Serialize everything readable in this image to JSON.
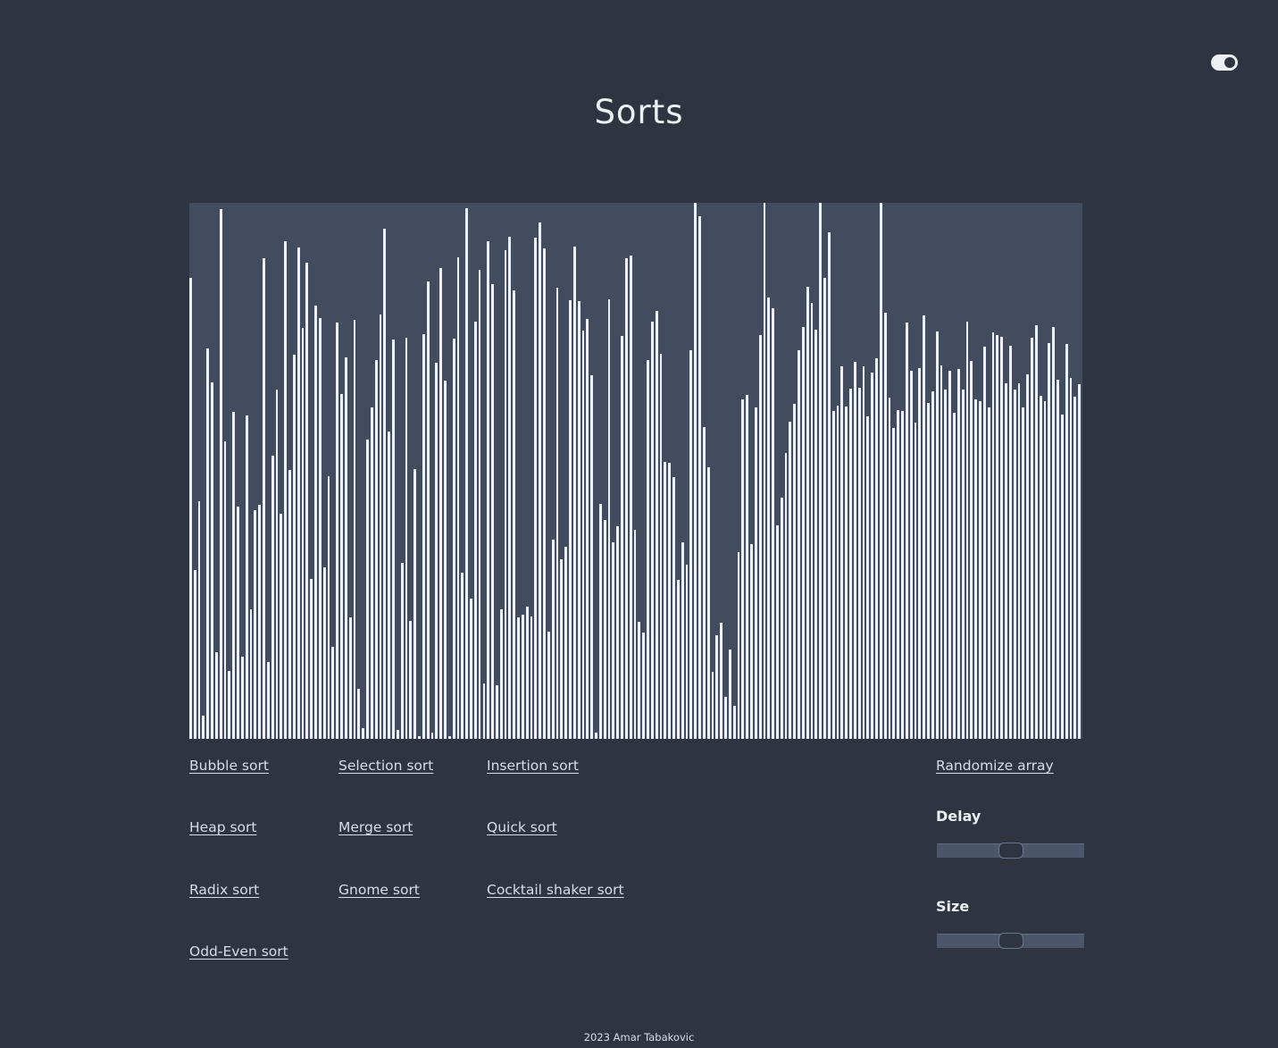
{
  "header": {
    "title": "Sorts",
    "theme_toggle_icon": "toggle-switch-icon"
  },
  "colors": {
    "background": "#2e3440",
    "panel": "#434c5e",
    "bar": "#eceff4",
    "slider_track": "#4c566a"
  },
  "array": {
    "max_value": 1000,
    "values": [
      860,
      315,
      443,
      43,
      728,
      665,
      162,
      988,
      555,
      126,
      610,
      433,
      154,
      604,
      241,
      427,
      437,
      897,
      143,
      528,
      651,
      420,
      929,
      502,
      716,
      917,
      767,
      888,
      298,
      808,
      785,
      320,
      490,
      171,
      776,
      643,
      711,
      227,
      781,
      93,
      20,
      559,
      618,
      706,
      791,
      951,
      574,
      745,
      17,
      329,
      749,
      220,
      504,
      0,
      755,
      854,
      11,
      702,
      879,
      669,
      1,
      747,
      898,
      310,
      990,
      262,
      779,
      875,
      104,
      929,
      849,
      100,
      242,
      912,
      936,
      836,
      227,
      232,
      247,
      229,
      935,
      964,
      915,
      200,
      371,
      841,
      335,
      359,
      818,
      919,
      816,
      761,
      784,
      678,
      12,
      439,
      409,
      820,
      366,
      397,
      752,
      896,
      902,
      390,
      219,
      199,
      706,
      779,
      798,
      718,
      516,
      515,
      489,
      297,
      366,
      325,
      725,
      1000,
      975,
      581,
      506,
      125,
      194,
      216,
      78,
      166,
      62,
      349,
      633,
      642,
      363,
      618,
      754,
      1000,
      824,
      803,
      398,
      450,
      533,
      591,
      625,
      725,
      769,
      843,
      813,
      764,
      1000,
      860,
      945,
      612,
      622,
      695,
      620,
      654,
      703,
      655,
      695,
      602,
      684,
      710,
      1000,
      795,
      637,
      580,
      613,
      612,
      776,
      687,
      590,
      692,
      790,
      626,
      648,
      760,
      696,
      652,
      687,
      609,
      690,
      652,
      778,
      705,
      634,
      630,
      732,
      618,
      759,
      753,
      750,
      663,
      734,
      652,
      664,
      618,
      680,
      749,
      771,
      640,
      630,
      739,
      768,
      670,
      605,
      736,
      674,
      638,
      662
    ]
  },
  "sort_links": [
    {
      "label": "Bubble sort"
    },
    {
      "label": "Selection sort"
    },
    {
      "label": "Insertion sort"
    },
    {
      "label": "Heap sort"
    },
    {
      "label": "Merge sort"
    },
    {
      "label": "Quick sort"
    },
    {
      "label": "Radix sort"
    },
    {
      "label": "Gnome sort"
    },
    {
      "label": "Cocktail shaker sort"
    },
    {
      "label": "Odd-Even sort"
    }
  ],
  "controls": {
    "randomize_label": "Randomize array",
    "delay": {
      "label": "Delay",
      "value": 0.5
    },
    "size": {
      "label": "Size",
      "value": 0.5
    }
  },
  "footer": {
    "text": "2023 Amar Tabakovic"
  }
}
